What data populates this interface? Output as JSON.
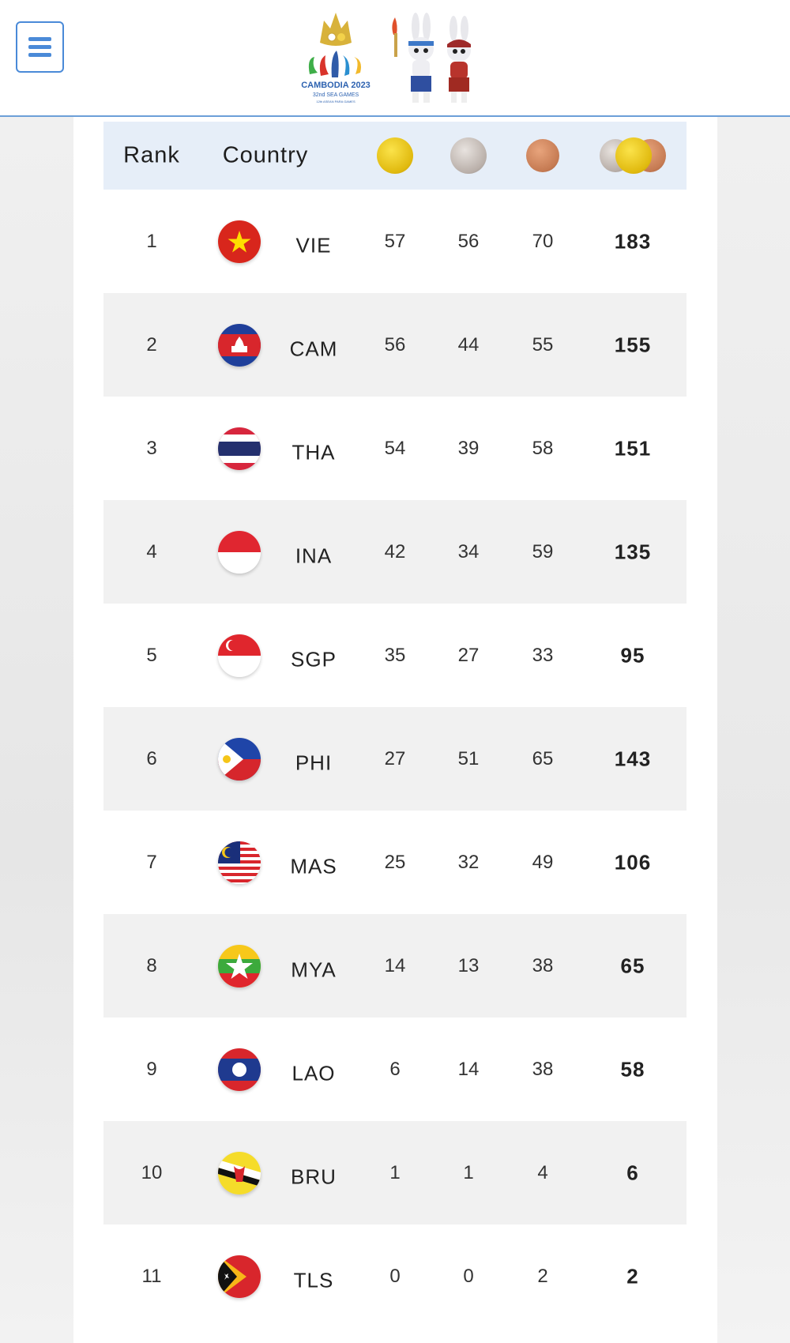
{
  "header": {
    "menu_icon": "hamburger-menu-icon",
    "logo_text": "CAMBODIA 2023",
    "logo_subtext": "32nd SEA GAMES",
    "logo_subtext2": "12th ASEAN PARA GAMES"
  },
  "table": {
    "columns": {
      "rank": "Rank",
      "country": "Country",
      "gold_icon": "gold-medal-icon",
      "silver_icon": "silver-medal-icon",
      "bronze_icon": "bronze-medal-icon",
      "total_icon": "total-medals-icon"
    },
    "rows": [
      {
        "rank": "1",
        "code": "VIE",
        "gold": "57",
        "silver": "56",
        "bronze": "70",
        "total": "183"
      },
      {
        "rank": "2",
        "code": "CAM",
        "gold": "56",
        "silver": "44",
        "bronze": "55",
        "total": "155"
      },
      {
        "rank": "3",
        "code": "THA",
        "gold": "54",
        "silver": "39",
        "bronze": "58",
        "total": "151"
      },
      {
        "rank": "4",
        "code": "INA",
        "gold": "42",
        "silver": "34",
        "bronze": "59",
        "total": "135"
      },
      {
        "rank": "5",
        "code": "SGP",
        "gold": "35",
        "silver": "27",
        "bronze": "33",
        "total": "95"
      },
      {
        "rank": "6",
        "code": "PHI",
        "gold": "27",
        "silver": "51",
        "bronze": "65",
        "total": "143"
      },
      {
        "rank": "7",
        "code": "MAS",
        "gold": "25",
        "silver": "32",
        "bronze": "49",
        "total": "106"
      },
      {
        "rank": "8",
        "code": "MYA",
        "gold": "14",
        "silver": "13",
        "bronze": "38",
        "total": "65"
      },
      {
        "rank": "9",
        "code": "LAO",
        "gold": "6",
        "silver": "14",
        "bronze": "38",
        "total": "58"
      },
      {
        "rank": "10",
        "code": "BRU",
        "gold": "1",
        "silver": "1",
        "bronze": "4",
        "total": "6"
      },
      {
        "rank": "11",
        "code": "TLS",
        "gold": "0",
        "silver": "0",
        "bronze": "2",
        "total": "2"
      }
    ]
  },
  "colors": {
    "accent": "#4a8ad8",
    "header_row": "#e6eef8",
    "alt_row": "#f1f1f1"
  }
}
